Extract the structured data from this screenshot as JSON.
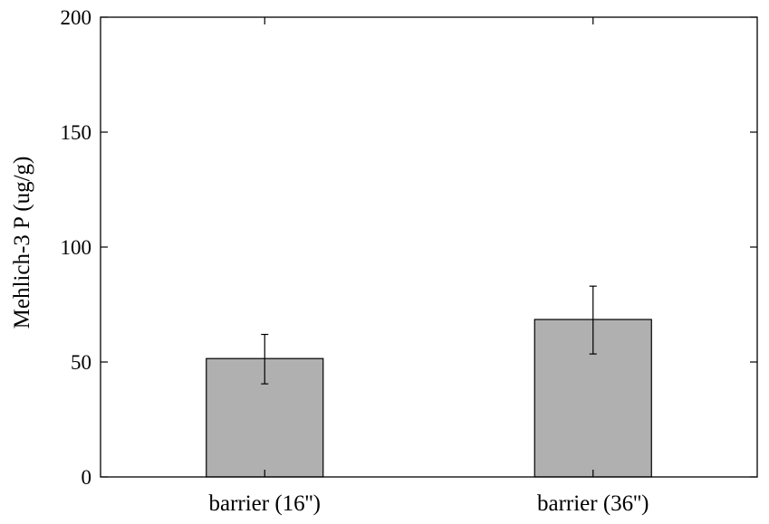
{
  "chart_data": {
    "type": "bar",
    "title": "",
    "xlabel": "",
    "ylabel": "Mehlich-3 P (ug/g)",
    "categories": [
      "barrier (16'')",
      "barrier (36'')"
    ],
    "values": [
      51.5,
      68.5
    ],
    "error": [
      {
        "low": 40.5,
        "high": 62
      },
      {
        "low": 53.5,
        "high": 83
      }
    ],
    "ylim": [
      0,
      200
    ],
    "yticks": [
      0,
      50,
      100,
      150,
      200
    ],
    "ytick_labels": [
      "0",
      "50",
      "100",
      "150",
      "200"
    ],
    "bar_color": "#b0b0b0",
    "grid": false,
    "legend": "none"
  }
}
